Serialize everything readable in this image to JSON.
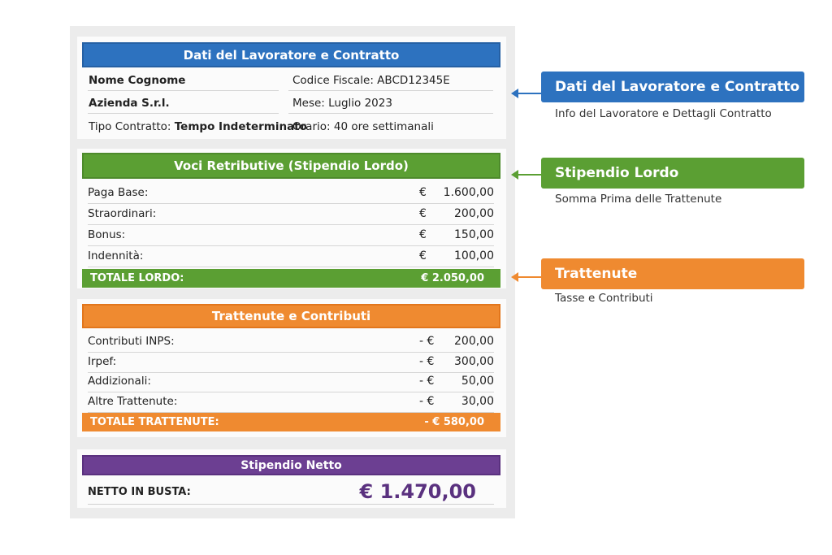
{
  "worker": {
    "header": "Dati del Lavoratore e Contratto",
    "name": "Nome Cognome",
    "company": "Azienda S.r.l.",
    "contract_label": "Tipo Contratto:",
    "contract_value": "Tempo Indeterminato",
    "tax_code": "Codice Fiscale: ABCD12345E",
    "month": "Mese: Luglio 2023",
    "hours": "Orario: 40 ore settimanali"
  },
  "gross": {
    "header": "Voci Retributive (Stipendio Lordo)",
    "items": [
      {
        "label": "Paga Base:",
        "currency": "€",
        "value": "1.600,00"
      },
      {
        "label": "Straordinari:",
        "currency": "€",
        "value": "200,00"
      },
      {
        "label": "Bonus:",
        "currency": "€",
        "value": "150,00"
      },
      {
        "label": "Indennità:",
        "currency": "€",
        "value": "100,00"
      }
    ],
    "total_label": "TOTALE LORDO:",
    "total_value": "€ 2.050,00"
  },
  "deductions": {
    "header": "Trattenute e Contributi",
    "items": [
      {
        "label": "Contributi INPS:",
        "currency": "- €",
        "value": "200,00"
      },
      {
        "label": "Irpef:",
        "currency": "- €",
        "value": "300,00"
      },
      {
        "label": "Addizionali:",
        "currency": "- €",
        "value": "50,00"
      },
      {
        "label": "Altre Trattenute:",
        "currency": "- €",
        "value": "30,00"
      }
    ],
    "total_label": "TOTALE TRATTENUTE:",
    "total_value": "- € 580,00"
  },
  "net": {
    "header": "Stipendio Netto",
    "label": "NETTO IN BUSTA:",
    "value": "€ 1.470,00"
  },
  "callouts": [
    {
      "title": "Dati del Lavoratore e Contratto",
      "subtitle": "Info del Lavoratore e Dettagli Contratto",
      "color": "#2d72bf"
    },
    {
      "title": "Stipendio Lordo",
      "subtitle": "Somma Prima delle Trattenute",
      "color": "#5b9f33"
    },
    {
      "title": "Trattenute",
      "subtitle": "Tasse e Contributi",
      "color": "#ef8a30"
    }
  ],
  "colors": {
    "blue": "#2d72bf",
    "green": "#5b9f33",
    "orange": "#ef8a30",
    "purple": "#6c3f92"
  }
}
